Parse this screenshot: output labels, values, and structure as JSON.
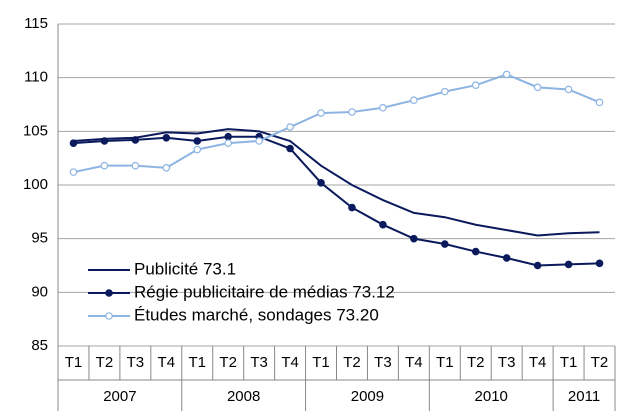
{
  "chart_data": {
    "type": "line",
    "categories": [
      "T1",
      "T2",
      "T3",
      "T4",
      "T1",
      "T2",
      "T3",
      "T4",
      "T1",
      "T2",
      "T3",
      "T4",
      "T1",
      "T2",
      "T3",
      "T4",
      "T1",
      "T2"
    ],
    "years": [
      "2007",
      "2008",
      "2009",
      "2010",
      "2011"
    ],
    "series": [
      {
        "name": "Publicité 73.1",
        "color": "#0a1a5c",
        "marker": "none",
        "values": [
          104.1,
          104.3,
          104.4,
          104.9,
          104.8,
          105.2,
          105.0,
          104.1,
          101.8,
          100.0,
          98.6,
          97.4,
          97.0,
          96.3,
          95.8,
          95.3,
          95.5,
          95.6
        ]
      },
      {
        "name": "Régie publicitaire de médias 73.12",
        "color": "#0a1a5c",
        "marker": "filled",
        "values": [
          103.9,
          104.1,
          104.2,
          104.4,
          104.1,
          104.5,
          104.5,
          103.4,
          100.2,
          97.9,
          96.3,
          95.0,
          94.5,
          93.8,
          93.2,
          92.5,
          92.6,
          92.7
        ]
      },
      {
        "name": "Études marché, sondages 73.20",
        "color": "#8db4e2",
        "marker": "open",
        "values": [
          101.2,
          101.8,
          101.8,
          101.6,
          103.3,
          103.9,
          104.1,
          105.4,
          106.7,
          106.8,
          107.2,
          107.9,
          108.7,
          109.3,
          110.3,
          109.1,
          108.9,
          107.7
        ]
      }
    ],
    "ylim": [
      85,
      115
    ],
    "yticks": [
      85,
      90,
      95,
      100,
      105,
      110,
      115
    ],
    "grid": true,
    "legend": "lower left"
  }
}
